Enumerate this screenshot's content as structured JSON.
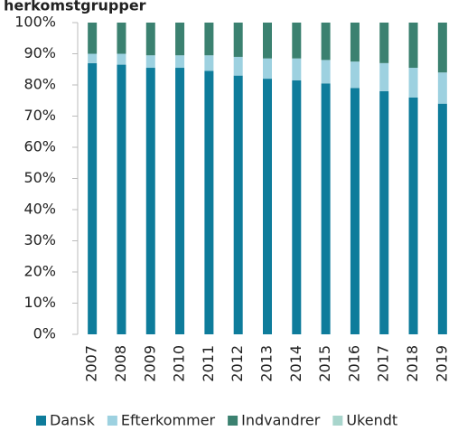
{
  "chart_data": {
    "type": "stacked_bar",
    "title": "herkomstgrupper",
    "categories": [
      "2007",
      "2008",
      "2009",
      "2010",
      "2011",
      "2012",
      "2013",
      "2014",
      "2015",
      "2016",
      "2017",
      "2018",
      "2019"
    ],
    "series": [
      {
        "name": "Dansk",
        "color": "#0e7c9b",
        "values": [
          87,
          86.5,
          85.5,
          85.5,
          84.5,
          83,
          82,
          81.5,
          80.5,
          79,
          78,
          76,
          74
        ]
      },
      {
        "name": "Efterkommer",
        "color": "#9dd1e0",
        "values": [
          3,
          3.5,
          4,
          4,
          5,
          6,
          6.5,
          7,
          7.5,
          8.5,
          9,
          9.5,
          10
        ]
      },
      {
        "name": "Indvandrer",
        "color": "#3b8170",
        "values": [
          10,
          10,
          10.5,
          10.5,
          10.5,
          11,
          11.5,
          11.5,
          12,
          12.5,
          13,
          14.5,
          16
        ]
      },
      {
        "name": "Ukendt",
        "color": "#a8d5cc",
        "values": [
          0,
          0,
          0,
          0,
          0,
          0,
          0,
          0,
          0,
          0,
          0,
          0,
          0
        ]
      }
    ],
    "ylim": [
      0,
      100
    ],
    "yticks": [
      {
        "value": 0,
        "label": "0%"
      },
      {
        "value": 10,
        "label": "10%"
      },
      {
        "value": 20,
        "label": "20%"
      },
      {
        "value": 30,
        "label": "30%"
      },
      {
        "value": 40,
        "label": "40%"
      },
      {
        "value": 50,
        "label": "50%"
      },
      {
        "value": 60,
        "label": "60%"
      },
      {
        "value": 70,
        "label": "70%"
      },
      {
        "value": 80,
        "label": "80%"
      },
      {
        "value": 90,
        "label": "90%"
      },
      {
        "value": 100,
        "label": "100%"
      }
    ],
    "legend": "bottom"
  }
}
